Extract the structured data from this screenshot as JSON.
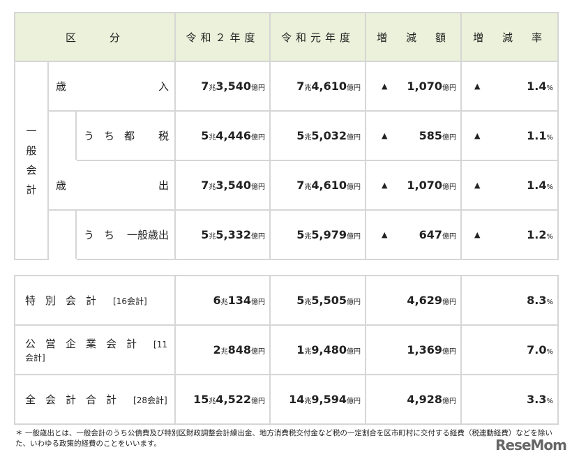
{
  "header": {
    "category": "区　　分",
    "r2": "令和２年度",
    "r1": "令和元年度",
    "diff": "増　減　額",
    "rate": "増　減　率"
  },
  "units": {
    "cho": "兆",
    "oku": "億円",
    "pct": "%",
    "up": "▲"
  },
  "general": {
    "label": "一般会計",
    "rows": [
      {
        "label_left": "歳",
        "label_right": "入",
        "indent": false,
        "r2": [
          "7",
          "3,540"
        ],
        "r1": [
          "7",
          "4,610"
        ],
        "diff": "1,070",
        "rate": "1.4"
      },
      {
        "label_left": "うち都",
        "label_right": "税",
        "indent": true,
        "r2": [
          "5",
          "4,446"
        ],
        "r1": [
          "5",
          "5,032"
        ],
        "diff": "585",
        "rate": "1.1"
      },
      {
        "label_left": "歳",
        "label_right": "出",
        "indent": false,
        "r2": [
          "7",
          "3,540"
        ],
        "r1": [
          "7",
          "4,610"
        ],
        "diff": "1,070",
        "rate": "1.4"
      },
      {
        "label_left": "うち",
        "label_right": "一般歳出",
        "indent": true,
        "r2": [
          "5",
          "5,332"
        ],
        "r1": [
          "5",
          "5,979"
        ],
        "diff": "647",
        "rate": "1.2"
      }
    ]
  },
  "others": [
    {
      "label": "特別会計",
      "count": "[16会計]",
      "r2": [
        "6",
        "134"
      ],
      "r1": [
        "5",
        "5,505"
      ],
      "diff": "4,629",
      "rate": "8.3"
    },
    {
      "label": "公営企業会計",
      "count": "[11会計]",
      "r2": [
        "2",
        "848"
      ],
      "r1": [
        "1",
        "9,480"
      ],
      "diff": "1,369",
      "rate": "7.0"
    },
    {
      "label": "全会計合計",
      "count": "[28会計]",
      "r2": [
        "15",
        "4,522"
      ],
      "r1": [
        "14",
        "9,594"
      ],
      "diff": "4,928",
      "rate": "3.3"
    }
  ],
  "note": "＊ 一般歳出とは、一般会計のうち公債費及び特別区財政調整会計繰出金、地方消費税交付金など税の一定割合を区市町村に交付する経費（税連動経費）などを除いた、いわゆる政策的経費のことをいいます。",
  "watermark": "ReseMom"
}
